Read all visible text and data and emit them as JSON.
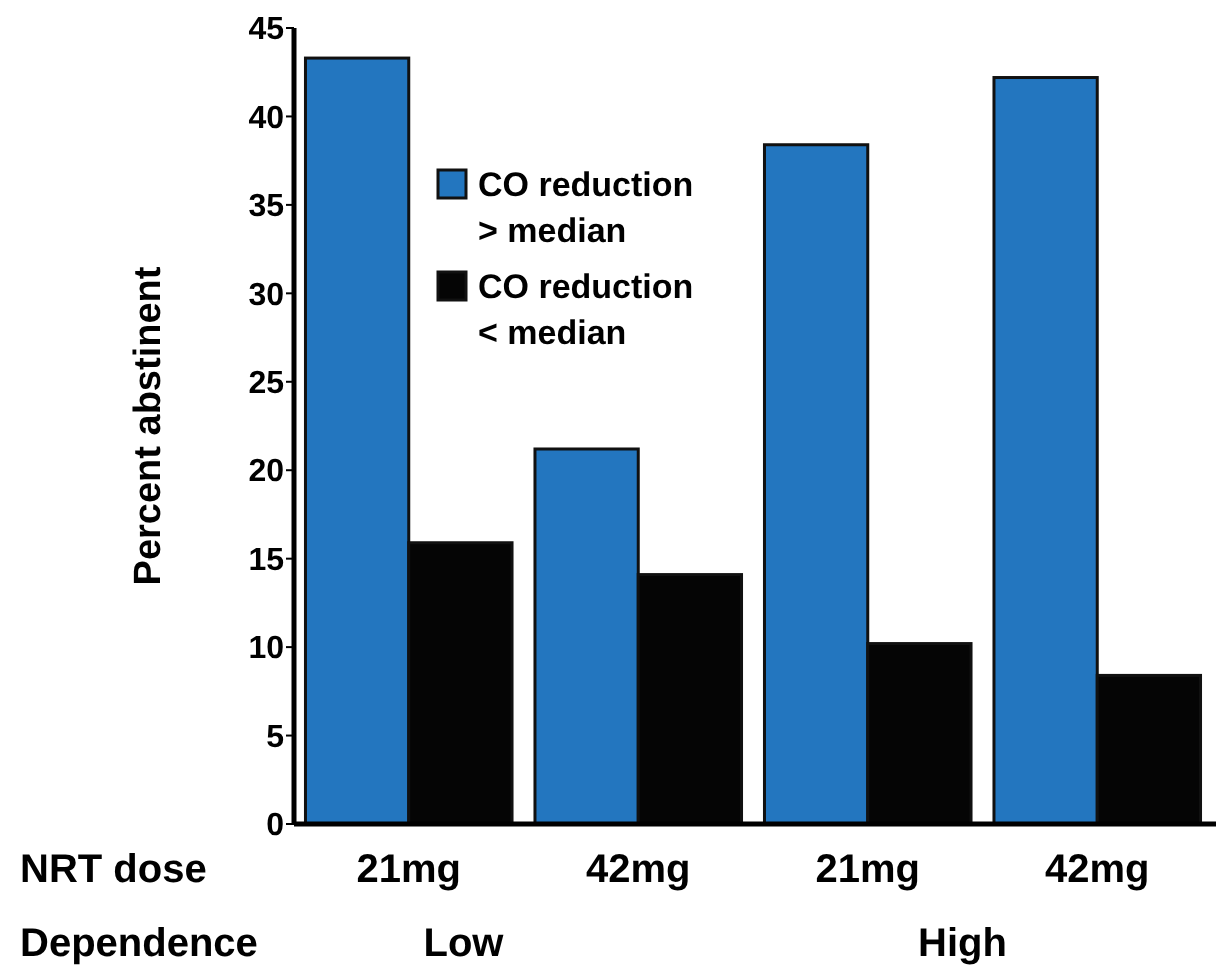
{
  "chart_data": {
    "type": "bar",
    "ylabel": "Percent abstinent",
    "categories": [
      "21mg",
      "42mg",
      "21mg",
      "42mg"
    ],
    "series": [
      {
        "name": "CO reduction > median",
        "color": "#2376bf",
        "values": [
          43.3,
          21.2,
          38.4,
          42.2
        ]
      },
      {
        "name": "CO reduction < median",
        "color": "#050505",
        "values": [
          15.9,
          14.1,
          10.2,
          8.4
        ]
      }
    ],
    "ylim": [
      0,
      45
    ],
    "yticks": [
      0,
      5,
      10,
      15,
      20,
      25,
      30,
      35,
      40,
      45
    ],
    "legend": "top left",
    "annotations": [
      "NRT dose",
      "Dependence",
      "Low",
      "High"
    ]
  }
}
